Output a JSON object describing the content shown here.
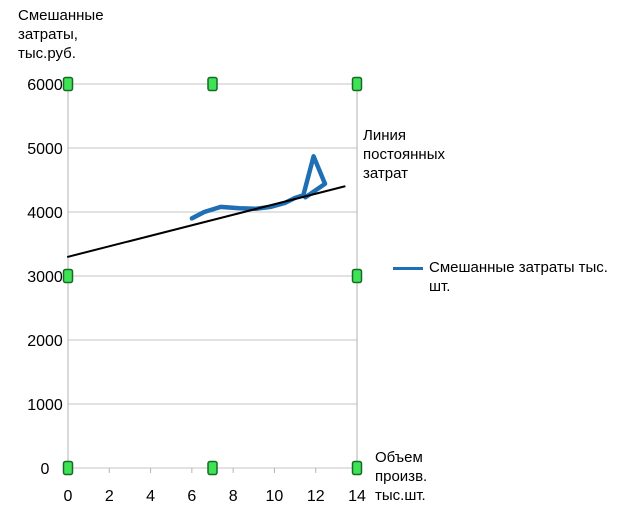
{
  "window": {
    "background": "#ffffff"
  },
  "chart_data": {
    "type": "line",
    "y_axis_title_lines": [
      "Смешанные",
      "затраты,",
      "тыс.руб."
    ],
    "x_axis_title_lines": [
      "Объем",
      "произв.",
      "тыс.шт."
    ],
    "fixed_costs_annotation_lines": [
      "Линия",
      "постоянных",
      "затрат"
    ],
    "legend": {
      "label_lines": [
        "Смешанные затраты тыс.",
        "шт."
      ],
      "series_color": "#1f6fb4",
      "position": "right"
    },
    "xlim": [
      0,
      14
    ],
    "ylim": [
      0,
      6000
    ],
    "x_ticks": [
      0,
      2,
      4,
      6,
      8,
      10,
      12,
      14
    ],
    "y_ticks": [
      0,
      1000,
      2000,
      3000,
      4000,
      5000,
      6000
    ],
    "grid": "horizontal",
    "colors": {
      "grid": "#c6c6c6",
      "axis": "#b3b3b3",
      "text": "#000000"
    },
    "series": [
      {
        "name": "Смешанные затраты тыс. шт.",
        "color": "#1f6fb4",
        "stroke_width": 4.5,
        "points": [
          [
            6.0,
            3900
          ],
          [
            6.6,
            4000
          ],
          [
            7.4,
            4080
          ],
          [
            8.3,
            4060
          ],
          [
            9.1,
            4050
          ],
          [
            9.8,
            4080
          ],
          [
            10.5,
            4140
          ],
          [
            11.0,
            4220
          ],
          [
            11.4,
            4260
          ],
          [
            11.9,
            4870
          ],
          [
            12.45,
            4440
          ],
          [
            11.5,
            4230
          ]
        ]
      },
      {
        "name": "Линия постоянных затрат",
        "color": "#000000",
        "stroke_width": 2,
        "points": [
          [
            0,
            3300
          ],
          [
            13.4,
            4400
          ]
        ]
      }
    ],
    "selection_handles": {
      "fill": "#3fe257",
      "border": "#156b24"
    }
  }
}
